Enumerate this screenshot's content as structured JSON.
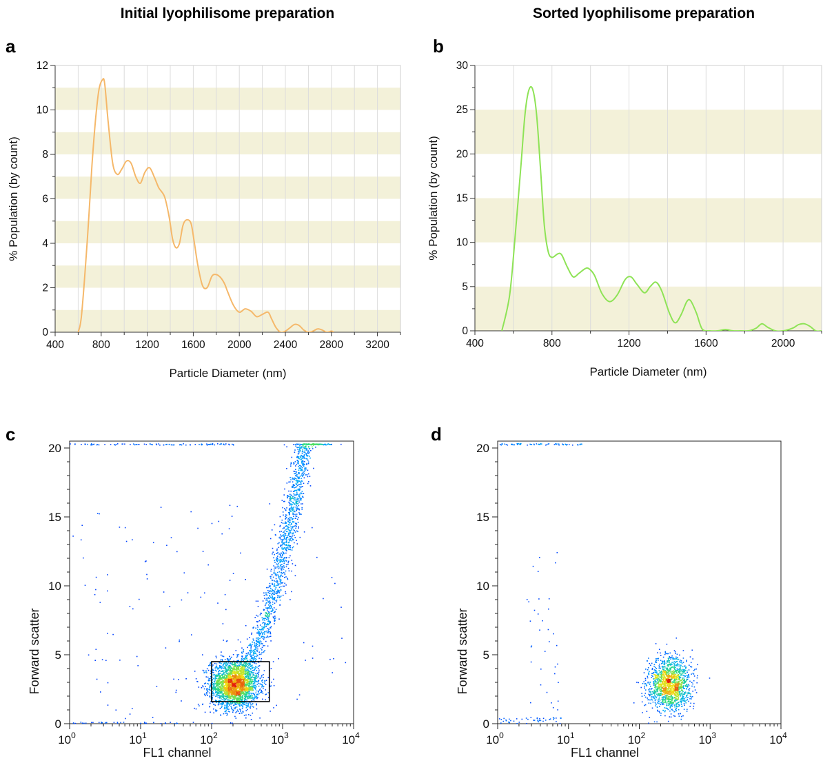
{
  "titles": {
    "left": "Initial lyophilisome preparation",
    "right": "Sorted lyophilisome preparation"
  },
  "chart_data": [
    {
      "id": "a",
      "panel_label": "a",
      "type": "line",
      "xlabel": "Particle Diameter (nm)",
      "ylabel": "% Population (by count)",
      "xlim": [
        400,
        3400
      ],
      "ylim": [
        0,
        12
      ],
      "xticks": [
        400,
        800,
        1200,
        1600,
        2000,
        2400,
        2800,
        3200
      ],
      "yticks": [
        0,
        2,
        4,
        6,
        8,
        10,
        12
      ],
      "band_step": 1,
      "line_color": "#f5b86a",
      "band_color": "#f3f1d9",
      "x": [
        600,
        630,
        680,
        720,
        750,
        780,
        810,
        830,
        860,
        900,
        940,
        980,
        1020,
        1060,
        1100,
        1140,
        1180,
        1220,
        1260,
        1300,
        1350,
        1390,
        1420,
        1450,
        1480,
        1510,
        1540,
        1580,
        1610,
        1640,
        1680,
        1720,
        1760,
        1790,
        1830,
        1870,
        1900,
        1950,
        2000,
        2050,
        2100,
        2150,
        2200,
        2250,
        2280,
        2320,
        2360,
        2400,
        2440,
        2480,
        2520,
        2560,
        2600,
        2640,
        2680,
        2720,
        2760,
        2800,
        2820
      ],
      "y": [
        0,
        0.8,
        4.2,
        7.5,
        9.5,
        10.9,
        11.35,
        11.2,
        9.5,
        7.6,
        7.1,
        7.35,
        7.7,
        7.6,
        7.0,
        6.7,
        7.2,
        7.4,
        7.0,
        6.5,
        6.1,
        5.2,
        4.2,
        3.8,
        4.0,
        4.8,
        5.05,
        4.9,
        4.0,
        3.0,
        2.1,
        2.0,
        2.5,
        2.6,
        2.5,
        2.2,
        1.8,
        1.2,
        0.9,
        1.05,
        0.95,
        0.7,
        0.8,
        0.9,
        0.6,
        0.2,
        0.0,
        0.05,
        0.2,
        0.35,
        0.3,
        0.1,
        0.0,
        0.05,
        0.15,
        0.1,
        0.0,
        0.05,
        0.0
      ]
    },
    {
      "id": "b",
      "panel_label": "b",
      "type": "line",
      "xlabel": "Particle Diameter (nm)",
      "ylabel": "% Population (by count)",
      "xlim": [
        400,
        2200
      ],
      "ylim": [
        0,
        30
      ],
      "xticks": [
        400,
        800,
        1200,
        1600,
        2000
      ],
      "yticks": [
        0,
        5,
        10,
        15,
        20,
        25,
        30
      ],
      "band_step": 5,
      "line_color": "#8ee356",
      "band_color": "#f3f1d9",
      "x": [
        540,
        580,
        610,
        640,
        660,
        680,
        700,
        720,
        740,
        760,
        780,
        800,
        830,
        850,
        880,
        910,
        940,
        970,
        990,
        1020,
        1060,
        1100,
        1140,
        1180,
        1210,
        1240,
        1280,
        1310,
        1340,
        1370,
        1410,
        1440,
        1470,
        1500,
        1520,
        1550,
        1580,
        1620,
        1660,
        1700,
        1740,
        1780,
        1820,
        1860,
        1890,
        1920,
        1960,
        2000,
        2050,
        2080,
        2110,
        2140,
        2170,
        2200
      ],
      "y": [
        0,
        4,
        11,
        19,
        24.5,
        27.2,
        27.3,
        24.5,
        18.5,
        12,
        9,
        8.3,
        8.7,
        8.6,
        7.2,
        6.1,
        6.5,
        7.0,
        7.05,
        6.3,
        4.2,
        3.3,
        4.1,
        5.8,
        6.1,
        5.3,
        4.3,
        5.0,
        5.5,
        4.5,
        2.0,
        0.9,
        1.8,
        3.3,
        3.4,
        2.0,
        0.2,
        0.0,
        0.0,
        0.15,
        0.0,
        0.0,
        0.0,
        0.3,
        0.8,
        0.4,
        0.0,
        0.0,
        0.3,
        0.7,
        0.8,
        0.5,
        0.0,
        0.0
      ]
    },
    {
      "id": "c",
      "panel_label": "c",
      "type": "scatter",
      "xlabel": "FL1 channel",
      "ylabel": "Forward scatter",
      "xscale": "log",
      "xlim": [
        1,
        10000
      ],
      "ylim": [
        0,
        20.5
      ],
      "xticks_base": "10",
      "xticks_exp": [
        "0",
        "1",
        "2",
        "3",
        "4"
      ],
      "yticks": [
        0,
        5,
        10,
        15,
        20
      ],
      "gate": {
        "x": [
          100,
          650
        ],
        "y": [
          1.6,
          4.5
        ]
      },
      "clusters": [
        {
          "n": 2600,
          "xlog_mean": 2.32,
          "xlog_sd": 0.17,
          "y_mean": 2.9,
          "y_sd": 0.85
        },
        {
          "n": 1300,
          "curve": true,
          "x_curve": [
            2.4,
            3.3
          ],
          "y_curve": [
            4.0,
            20.2
          ],
          "xlog_sd": 0.07
        },
        {
          "n": 130,
          "xlog_mean": 3.45,
          "xlog_sd": 0.12,
          "y_mean": 20.3,
          "y_sd": 0.02
        },
        {
          "n": 140,
          "uniform": true,
          "xlog_range": [
            0,
            4
          ],
          "y_range": [
            0.2,
            16
          ]
        },
        {
          "n": 90,
          "uniform": true,
          "xlog_range": [
            0,
            2.3
          ],
          "y_range": [
            20.25,
            20.35
          ]
        },
        {
          "n": 40,
          "uniform": true,
          "xlog_range": [
            0,
            2.3
          ],
          "y_range": [
            0.05,
            0.15
          ]
        }
      ]
    },
    {
      "id": "d",
      "panel_label": "d",
      "type": "scatter",
      "xlabel": "FL1 channel",
      "ylabel": "Forward scatter",
      "xscale": "log",
      "xlim": [
        1,
        10000
      ],
      "ylim": [
        0,
        20.5
      ],
      "xticks_base": "10",
      "xticks_exp": [
        "0",
        "1",
        "2",
        "3",
        "4"
      ],
      "yticks": [
        0,
        5,
        10,
        15,
        20
      ],
      "clusters": [
        {
          "n": 1500,
          "xlog_mean": 2.42,
          "xlog_sd": 0.15,
          "y_mean": 2.9,
          "y_sd": 0.95
        },
        {
          "n": 35,
          "uniform": true,
          "xlog_range": [
            0.4,
            0.85
          ],
          "y_range": [
            0.3,
            12.5
          ]
        },
        {
          "n": 60,
          "uniform": true,
          "xlog_range": [
            0,
            1.2
          ],
          "y_range": [
            20.25,
            20.35
          ]
        },
        {
          "n": 45,
          "uniform": true,
          "xlog_range": [
            0,
            0.9
          ],
          "y_range": [
            0.05,
            0.5
          ]
        }
      ]
    }
  ]
}
